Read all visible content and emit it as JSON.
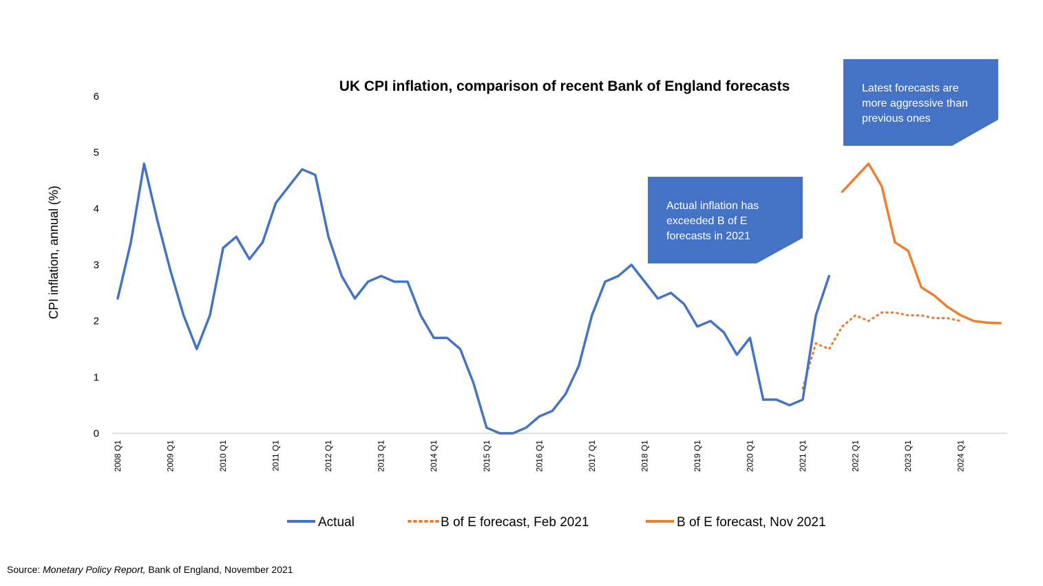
{
  "chart_data": {
    "type": "line",
    "title": "UK CPI inflation, comparison of recent Bank of England forecasts",
    "ylabel": "CPI inflation, annual (%)",
    "xlabel": "",
    "ylim": [
      0,
      6
    ],
    "yticks": [
      "0",
      "1",
      "2",
      "3",
      "4",
      "5",
      "6"
    ],
    "x_tick_labels": [
      "2008 Q1",
      "2009 Q1",
      "2010 Q1",
      "2011 Q1",
      "2012 Q1",
      "2013 Q1",
      "2014 Q1",
      "2015 Q1",
      "2016 Q1",
      "2017 Q1",
      "2018 Q1",
      "2019 Q1",
      "2020 Q1",
      "2021 Q1",
      "2022 Q1",
      "2023 Q1",
      "2024 Q1"
    ],
    "x_range_quarters": [
      "2008 Q1",
      "2024 Q4"
    ],
    "grid": false,
    "legend_position": "bottom",
    "series": [
      {
        "name": "Actual",
        "color": "#4472c4",
        "style": "solid",
        "x": [
          "2008 Q1",
          "2008 Q2",
          "2008 Q3",
          "2008 Q4",
          "2009 Q1",
          "2009 Q2",
          "2009 Q3",
          "2009 Q4",
          "2010 Q1",
          "2010 Q2",
          "2010 Q3",
          "2010 Q4",
          "2011 Q1",
          "2011 Q2",
          "2011 Q3",
          "2011 Q4",
          "2012 Q1",
          "2012 Q2",
          "2012 Q3",
          "2012 Q4",
          "2013 Q1",
          "2013 Q2",
          "2013 Q3",
          "2013 Q4",
          "2014 Q1",
          "2014 Q2",
          "2014 Q3",
          "2014 Q4",
          "2015 Q1",
          "2015 Q2",
          "2015 Q3",
          "2015 Q4",
          "2016 Q1",
          "2016 Q2",
          "2016 Q3",
          "2016 Q4",
          "2017 Q1",
          "2017 Q2",
          "2017 Q3",
          "2017 Q4",
          "2018 Q1",
          "2018 Q2",
          "2018 Q3",
          "2018 Q4",
          "2019 Q1",
          "2019 Q2",
          "2019 Q3",
          "2019 Q4",
          "2020 Q1",
          "2020 Q2",
          "2020 Q3",
          "2020 Q4",
          "2021 Q1",
          "2021 Q2",
          "2021 Q3"
        ],
        "values": [
          2.4,
          3.4,
          4.8,
          3.8,
          2.9,
          2.1,
          1.5,
          2.1,
          3.3,
          3.5,
          3.1,
          3.4,
          4.1,
          4.4,
          4.7,
          4.6,
          3.5,
          2.8,
          2.4,
          2.7,
          2.8,
          2.7,
          2.7,
          2.1,
          1.7,
          1.7,
          1.5,
          0.9,
          0.1,
          0.0,
          0.0,
          0.1,
          0.3,
          0.4,
          0.7,
          1.2,
          2.1,
          2.7,
          2.8,
          3.0,
          2.7,
          2.4,
          2.5,
          2.3,
          1.9,
          2.0,
          1.8,
          1.4,
          1.7,
          0.6,
          0.6,
          0.5,
          0.6,
          2.1,
          2.8
        ]
      },
      {
        "name": "B of E forecast, Feb 2021",
        "color": "#ed7d31",
        "style": "dotted",
        "x": [
          "2021 Q1",
          "2021 Q2",
          "2021 Q3",
          "2021 Q4",
          "2022 Q1",
          "2022 Q2",
          "2022 Q3",
          "2022 Q4",
          "2023 Q1",
          "2023 Q2",
          "2023 Q3",
          "2023 Q4",
          "2024 Q1"
        ],
        "values": [
          0.8,
          1.6,
          1.5,
          1.9,
          2.1,
          2.0,
          2.15,
          2.15,
          2.1,
          2.1,
          2.05,
          2.05,
          2.0
        ]
      },
      {
        "name": "B of E forecast, Nov 2021",
        "color": "#ed7d31",
        "style": "solid",
        "x": [
          "2021 Q4",
          "2022 Q1",
          "2022 Q2",
          "2022 Q3",
          "2022 Q4",
          "2023 Q1",
          "2023 Q2",
          "2023 Q3",
          "2023 Q4",
          "2024 Q1",
          "2024 Q2",
          "2024 Q3",
          "2024 Q4"
        ],
        "values": [
          4.3,
          4.55,
          4.8,
          4.4,
          3.4,
          3.25,
          2.6,
          2.45,
          2.25,
          2.1,
          2.0,
          1.97,
          1.96
        ]
      }
    ],
    "annotations": [
      {
        "text_lines": [
          "Actual inflation has",
          "exceeded B of E",
          "forecasts in 2021"
        ],
        "color": "#4472c4"
      },
      {
        "text_lines": [
          "Latest forecasts are",
          "more aggressive than",
          "previous ones"
        ],
        "color": "#4472c4"
      }
    ]
  },
  "source": {
    "prefix": "Source: ",
    "publication": "Monetary Policy Report,",
    "suffix": " Bank of England, November 2021"
  }
}
